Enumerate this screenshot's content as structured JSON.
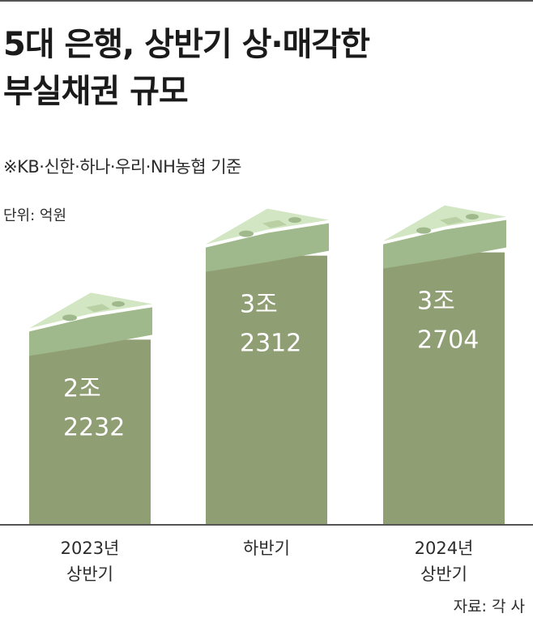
{
  "header": {
    "title_line1": "5대 은행, 상반기 상·매각한",
    "title_line2": "부실채권 규모",
    "subtitle": "※KB·신한·하나·우리·NH농협 기준",
    "unit": "단위: 억원"
  },
  "footer": {
    "source": "자료: 각 사"
  },
  "colors": {
    "bar": "#909e74",
    "bill_light": "#d3e6c3",
    "bill_mid": "#b8d0a4",
    "bill_dark": "#9fb98c",
    "axis": "#555555"
  },
  "chart_data": {
    "type": "bar",
    "title": "5대 은행, 상반기 상·매각한 부실채권 규모",
    "unit": "억원",
    "categories": [
      [
        "2023년",
        "상반기"
      ],
      [
        "하반기"
      ],
      [
        "2024년",
        "상반기"
      ]
    ],
    "values": [
      22232,
      32312,
      32704
    ],
    "value_labels": [
      [
        "2조",
        "2232"
      ],
      [
        "3조",
        "2312"
      ],
      [
        "3조",
        "2704"
      ]
    ],
    "ylim": [
      0,
      35000
    ],
    "grid": false
  }
}
